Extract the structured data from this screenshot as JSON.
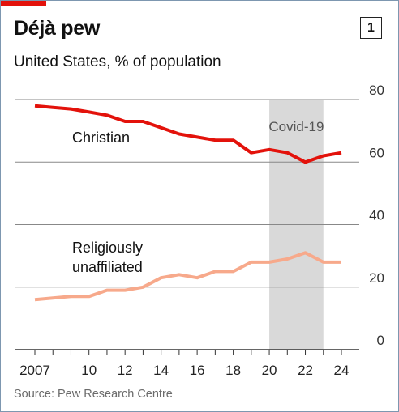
{
  "header": {
    "title": "Déjà pew",
    "badge": "1",
    "subtitle": "United States, % of population"
  },
  "colors": {
    "brand": "#e3120b",
    "christian": "#e3120b",
    "unaffiliated": "#f7a98b",
    "covid_band": "#d9d9d9",
    "grid": "#888888"
  },
  "chart_data": {
    "type": "line",
    "ylim": [
      0,
      80
    ],
    "xlim": [
      2007,
      2024
    ],
    "y_ticks": [
      "0",
      "20",
      "40",
      "60",
      "80"
    ],
    "x_ticks": [
      {
        "year": 2007,
        "label": "2007"
      },
      {
        "year": 2010,
        "label": "10"
      },
      {
        "year": 2012,
        "label": "12"
      },
      {
        "year": 2014,
        "label": "14"
      },
      {
        "year": 2016,
        "label": "16"
      },
      {
        "year": 2018,
        "label": "18"
      },
      {
        "year": 2020,
        "label": "20"
      },
      {
        "year": 2022,
        "label": "22"
      },
      {
        "year": 2024,
        "label": "24"
      }
    ],
    "shaded_period": {
      "label": "Covid-19",
      "from": 2020,
      "to": 2023
    },
    "series": [
      {
        "name": "Christian",
        "label_lines": [
          "Christian"
        ],
        "x": [
          2007,
          2008,
          2009,
          2010,
          2011,
          2012,
          2013,
          2014,
          2015,
          2016,
          2017,
          2018,
          2019,
          2020,
          2021,
          2022,
          2023,
          2024
        ],
        "values": [
          78,
          77.5,
          77,
          76,
          75,
          73,
          73,
          71,
          69,
          68,
          67,
          67,
          63,
          64,
          63,
          60,
          62,
          63
        ]
      },
      {
        "name": "Religiously unaffiliated",
        "label_lines": [
          "Religiously",
          "unaffiliated"
        ],
        "x": [
          2007,
          2008,
          2009,
          2010,
          2011,
          2012,
          2013,
          2014,
          2015,
          2016,
          2017,
          2018,
          2019,
          2020,
          2021,
          2022,
          2023,
          2024
        ],
        "values": [
          16,
          16.5,
          17,
          17,
          19,
          19,
          20,
          23,
          24,
          23,
          25,
          25,
          28,
          28,
          29,
          31,
          28,
          28
        ]
      }
    ]
  },
  "footer": {
    "source": "Source: Pew Research Centre"
  }
}
